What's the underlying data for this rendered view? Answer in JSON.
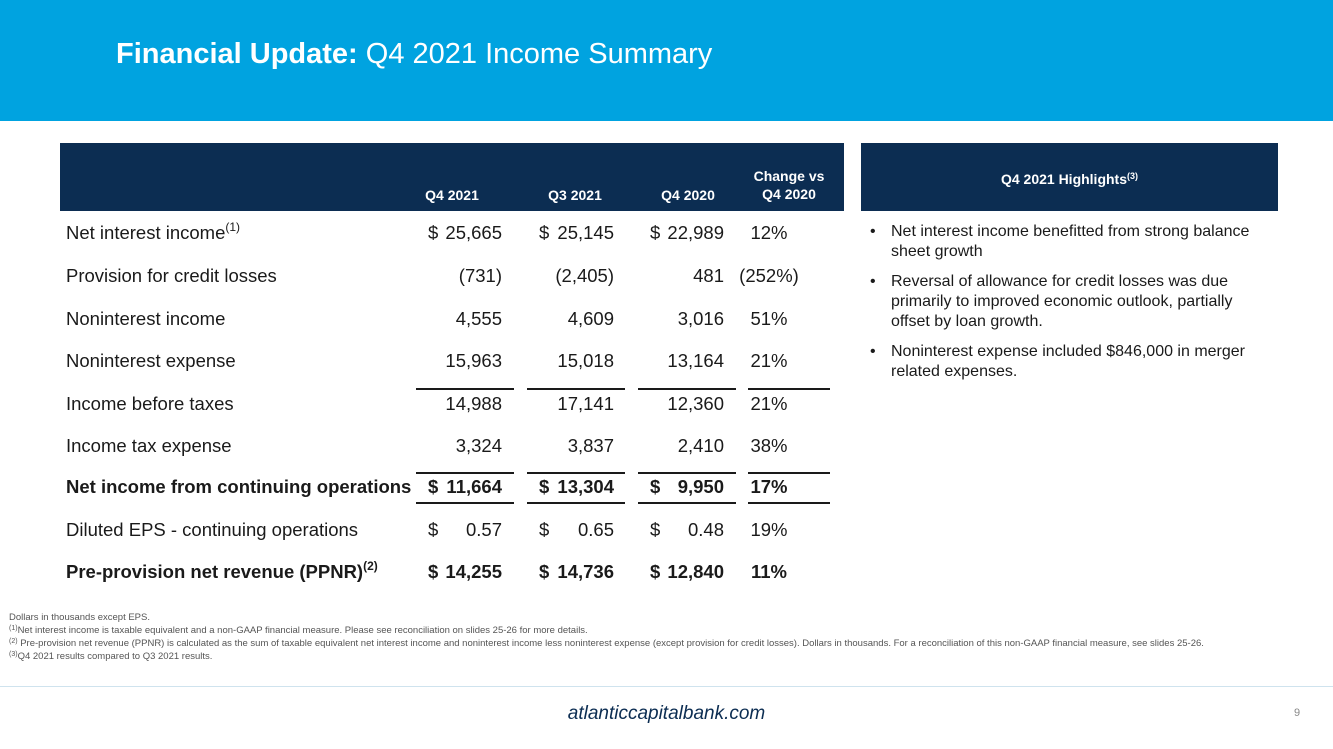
{
  "header": {
    "title_bold": "Financial Update:",
    "title_rest": " Q4 2021 Income Summary"
  },
  "table": {
    "columns": [
      "Q4 2021",
      "Q3 2021",
      "Q4 2020"
    ],
    "change_col_line1": "Change vs",
    "change_col_line2": "Q4 2020",
    "rows": [
      {
        "label": "Net interest income",
        "sup": "(1)",
        "q4_2021": "25,665",
        "q3_2021": "25,145",
        "q4_2020": "22,989",
        "change": "12%",
        "dollar": true
      },
      {
        "label": "Provision for credit losses",
        "sup": "",
        "q4_2021": "(731)",
        "q3_2021": "(2,405)",
        "q4_2020": "481",
        "change": "(252%)",
        "dollar": false
      },
      {
        "label": "Noninterest income",
        "sup": "",
        "q4_2021": "4,555",
        "q3_2021": "4,609",
        "q4_2020": "3,016",
        "change": "51%",
        "dollar": false
      },
      {
        "label": "Noninterest expense",
        "sup": "",
        "q4_2021": "15,963",
        "q3_2021": "15,018",
        "q4_2020": "13,164",
        "change": "21%",
        "dollar": false
      },
      {
        "label": "Income before taxes",
        "sup": "",
        "q4_2021": "14,988",
        "q3_2021": "17,141",
        "q4_2020": "12,360",
        "change": "21%",
        "dollar": false
      },
      {
        "label": "Income tax expense",
        "sup": "",
        "q4_2021": "3,324",
        "q3_2021": "3,837",
        "q4_2020": "2,410",
        "change": "38%",
        "dollar": false
      },
      {
        "label": "Net income from continuing operations",
        "sup": "",
        "q4_2021": "11,664",
        "q3_2021": "13,304",
        "q4_2020": "9,950",
        "change": "17%",
        "dollar": true
      },
      {
        "label": "Diluted EPS - continuing operations",
        "sup": "",
        "q4_2021": "0.57",
        "q3_2021": "0.65",
        "q4_2020": "0.48",
        "change": "19%",
        "dollar": true
      },
      {
        "label": "Pre-provision net revenue (PPNR)",
        "sup": "(2)",
        "q4_2021": "14,255",
        "q3_2021": "14,736",
        "q4_2020": "12,840",
        "change": "11%",
        "dollar": true
      }
    ],
    "currency_symbol": "$"
  },
  "highlights": {
    "title": "Q4 2021 Highlights",
    "title_sup": "(3)",
    "bullet": "•",
    "items": [
      "Net interest income benefitted from strong balance sheet growth",
      "Reversal of allowance for credit losses was due primarily to improved economic outlook, partially offset by loan growth.",
      "Noninterest expense included $846,000 in merger related expenses."
    ]
  },
  "notes": {
    "line1": "Dollars in thousands except EPS.",
    "n1_sup": "(1)",
    "n1": "Net interest income is taxable equivalent and a non-GAAP financial measure.  Please see reconciliation on slides 25-26 for more details.",
    "n2_sup": "(2)",
    "n2": " Pre-provision net revenue (PPNR) is calculated as the sum of taxable equivalent net interest income and noninterest income less noninterest expense (except provision for credit losses). Dollars in thousands. For a reconciliation of this non-GAAP financial measure, see slides 25-26.",
    "n3_sup": "(3)",
    "n3": "Q4 2021 results compared to Q3 2021 results."
  },
  "footer": {
    "url": "atlanticcapitalbank.com",
    "page": "9"
  }
}
